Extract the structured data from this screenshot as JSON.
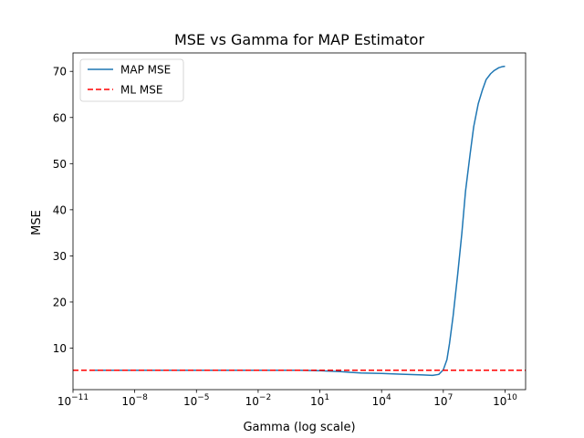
{
  "chart_data": {
    "type": "line",
    "title": "MSE vs Gamma for MAP Estimator",
    "xlabel": "Gamma (log scale)",
    "ylabel": "MSE",
    "x_scale": "log",
    "xlim": [
      1e-11,
      100000000000.0
    ],
    "ylim": [
      1.0,
      74.0
    ],
    "x_ticks": [
      {
        "value": 1e-11,
        "base": "10",
        "exp": "−11"
      },
      {
        "value": 1e-08,
        "base": "10",
        "exp": "−8"
      },
      {
        "value": 1e-05,
        "base": "10",
        "exp": "−5"
      },
      {
        "value": 0.01,
        "base": "10",
        "exp": "−2"
      },
      {
        "value": 10.0,
        "base": "10",
        "exp": "1"
      },
      {
        "value": 10000.0,
        "base": "10",
        "exp": "4"
      },
      {
        "value": 10000000.0,
        "base": "10",
        "exp": "7"
      },
      {
        "value": 10000000000.0,
        "base": "10",
        "exp": "10"
      }
    ],
    "y_ticks": [
      10,
      20,
      30,
      40,
      50,
      60,
      70
    ],
    "grid": false,
    "legend": {
      "position": "upper-left"
    },
    "series": [
      {
        "name": "MAP MSE",
        "color": "#1f77b4",
        "style": "solid",
        "x": [
          1e-10,
          1e-08,
          1e-06,
          0.0001,
          0.01,
          1,
          10,
          100,
          1000,
          10000.0,
          100000.0,
          1000000.0,
          3000000.0,
          6000000.0,
          10000000.0,
          15000000.0,
          20000000.0,
          30000000.0,
          50000000.0,
          80000000.0,
          120000000.0,
          200000000.0,
          300000000.0,
          500000000.0,
          800000000.0,
          1200000000.0,
          2000000000.0,
          3000000000.0,
          5000000000.0,
          7000000000.0,
          10000000000.0
        ],
        "y": [
          5.2,
          5.2,
          5.2,
          5.2,
          5.2,
          5.2,
          5.1,
          4.9,
          4.6,
          4.5,
          4.35,
          4.2,
          4.1,
          4.3,
          5.3,
          7.5,
          11,
          17,
          26,
          35,
          44,
          52,
          58,
          63,
          66,
          68.2,
          69.5,
          70.2,
          70.8,
          71.0,
          71.1
        ]
      },
      {
        "name": "ML MSE",
        "color": "#ff0000",
        "style": "dashed",
        "y_constant": 5.2
      }
    ]
  }
}
